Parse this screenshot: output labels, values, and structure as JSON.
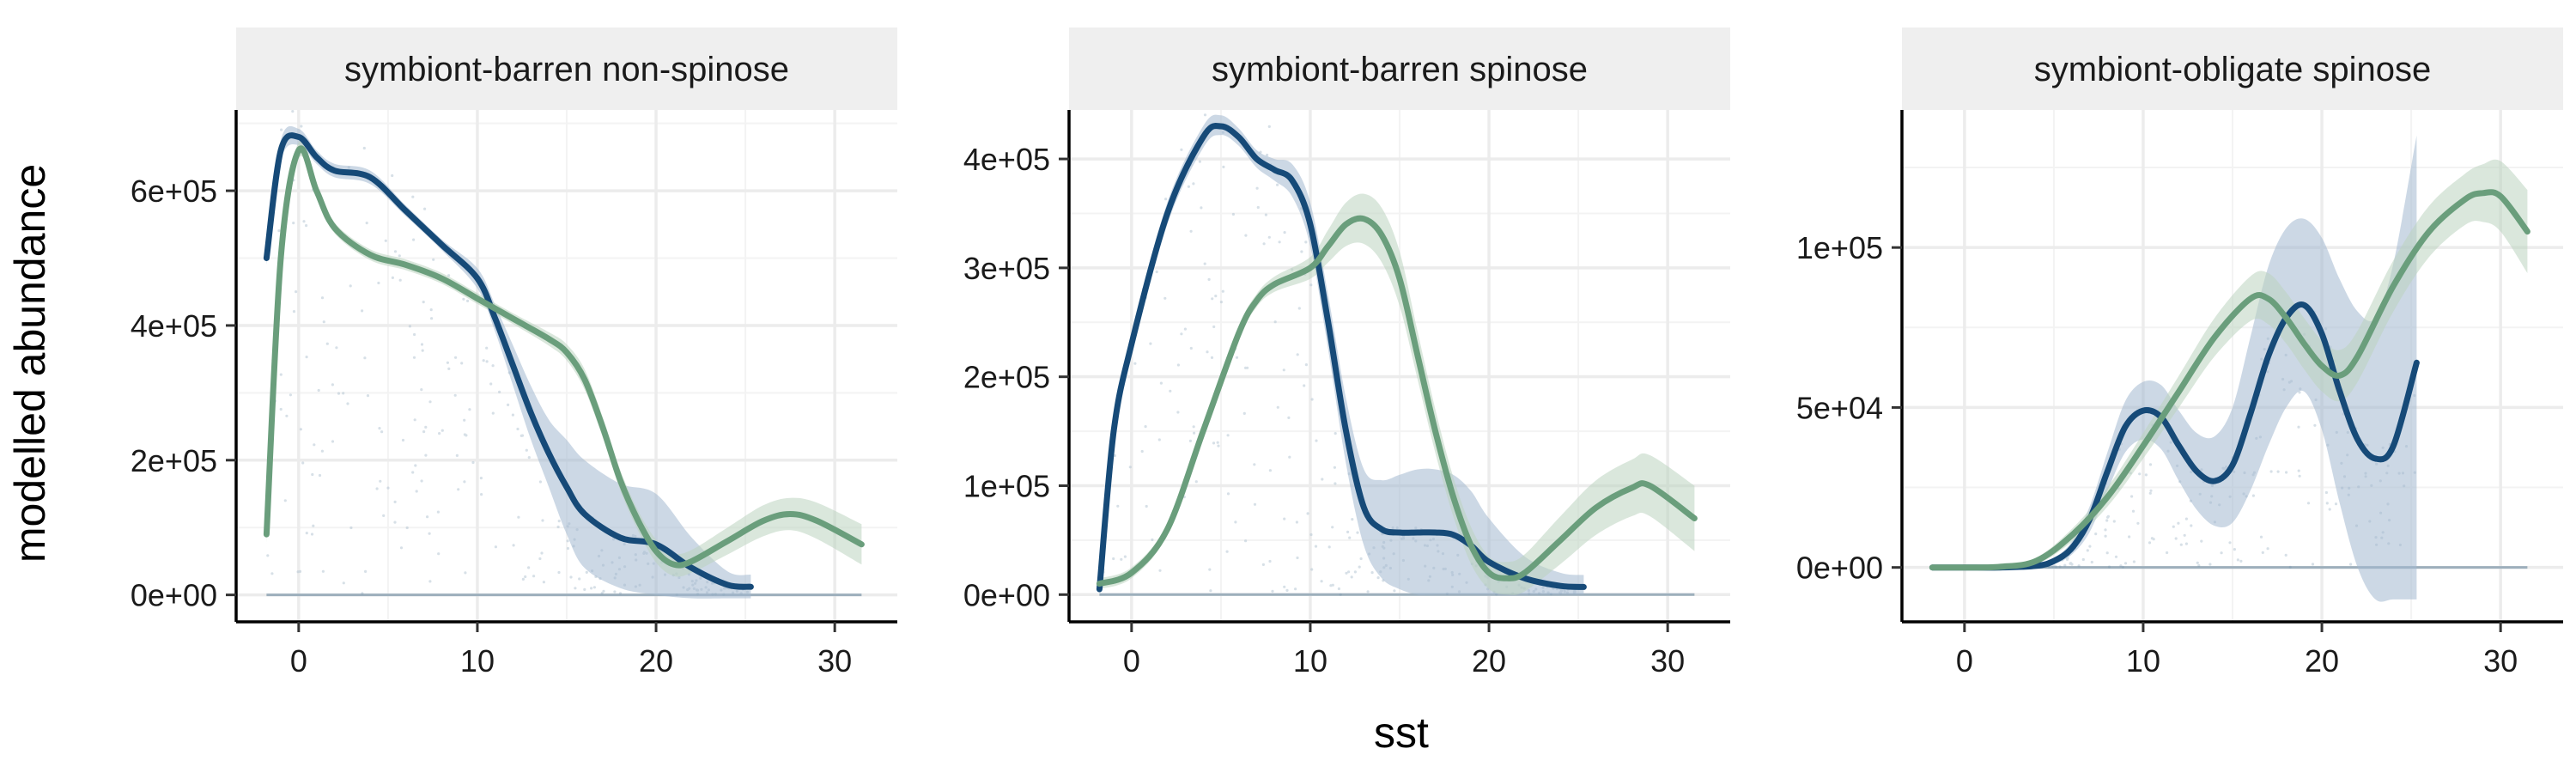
{
  "chart_data": {
    "type": "line",
    "xlabel": "sst",
    "ylabel": "modelled abundance",
    "grid": true,
    "colors": {
      "blue": "#164a78",
      "green": "#6a9e7c",
      "blue_band": "#a3b8d0",
      "green_band": "#bcd3bf",
      "points": "#b7c7d4",
      "strip_bg": "#efefef",
      "grid": "#ececec"
    },
    "panels": [
      {
        "title": "symbiont-barren non-spinose",
        "xlim": [
          -3.5,
          33.5
        ],
        "ylim": [
          -40000,
          720000
        ],
        "x_ticks": [
          0,
          10,
          20,
          30
        ],
        "x_tick_labels": [
          "0",
          "10",
          "20",
          "30"
        ],
        "y_ticks": [
          0,
          200000,
          400000,
          600000
        ],
        "y_tick_labels": [
          "0e+00",
          "2e+05",
          "4e+05",
          "6e+05"
        ],
        "series": [
          {
            "color_key": "blue",
            "x": [
              -1.8,
              -1,
              0,
              1,
              2,
              4,
              6,
              8,
              10,
              11,
              12,
              13,
              14,
              15,
              16,
              18,
              20,
              22,
              24,
              25.3
            ],
            "y": [
              500000,
              660000,
              680000,
              650000,
              630000,
              620000,
              570000,
              520000,
              470000,
              410000,
              340000,
              270000,
              210000,
              160000,
              120000,
              85000,
              75000,
              40000,
              15000,
              12000
            ],
            "lower": [
              490000,
              645000,
              668000,
              640000,
              620000,
              610000,
              562000,
              512000,
              455000,
              390000,
              310000,
              230000,
              160000,
              90000,
              40000,
              10000,
              0,
              -5000,
              -5000,
              -5000
            ],
            "upper": [
              510000,
              675000,
              692000,
              660000,
              640000,
              630000,
              578000,
              528000,
              485000,
              430000,
              370000,
              310000,
              260000,
              230000,
              200000,
              165000,
              150000,
              85000,
              35000,
              30000
            ]
          },
          {
            "color_key": "green",
            "x": [
              -1.8,
              -1,
              0,
              1,
              2,
              4,
              6,
              8,
              10,
              12,
              14,
              15,
              16,
              17,
              18,
              19,
              20,
              21,
              22,
              24,
              26,
              27.5,
              29,
              31.5
            ],
            "y": [
              90000,
              500000,
              660000,
              600000,
              545000,
              505000,
              490000,
              470000,
              440000,
              410000,
              380000,
              360000,
              320000,
              250000,
              170000,
              110000,
              65000,
              45000,
              50000,
              80000,
              110000,
              120000,
              110000,
              75000
            ],
            "lower": [
              75000,
              485000,
              648000,
              590000,
              537000,
              497000,
              482000,
              462000,
              432000,
              402000,
              370000,
              348000,
              305000,
              235000,
              155000,
              95000,
              48000,
              28000,
              33000,
              60000,
              87000,
              96000,
              83000,
              45000
            ],
            "upper": [
              105000,
              515000,
              672000,
              610000,
              553000,
              513000,
              498000,
              478000,
              448000,
              418000,
              390000,
              372000,
              335000,
              265000,
              185000,
              125000,
              82000,
              62000,
              67000,
              100000,
              133000,
              144000,
              137000,
              105000
            ]
          }
        ]
      },
      {
        "title": "symbiont-barren spinose",
        "xlim": [
          -3.5,
          33.5
        ],
        "ylim": [
          -25000,
          445000
        ],
        "x_ticks": [
          0,
          10,
          20,
          30
        ],
        "x_tick_labels": [
          "0",
          "10",
          "20",
          "30"
        ],
        "y_ticks": [
          0,
          100000,
          200000,
          300000,
          400000
        ],
        "y_tick_labels": [
          "0e+00",
          "1e+05",
          "2e+05",
          "3e+05",
          "4e+05"
        ],
        "series": [
          {
            "color_key": "blue",
            "x": [
              -1.8,
              -1,
              0,
              2,
              4,
              5,
              6,
              7,
              8,
              9,
              10,
              11,
              12,
              13,
              14,
              15,
              16,
              17,
              18,
              19,
              20,
              22,
              24,
              25.3
            ],
            "y": [
              5000,
              150000,
              230000,
              350000,
              420000,
              430000,
              420000,
              400000,
              390000,
              380000,
              340000,
              250000,
              150000,
              80000,
              60000,
              57000,
              57000,
              57000,
              55000,
              45000,
              30000,
              15000,
              8000,
              7000
            ],
            "lower": [
              0,
              140000,
              220000,
              340000,
              410000,
              422000,
              412000,
              392000,
              380000,
              365000,
              320000,
              225000,
              120000,
              45000,
              15000,
              5000,
              0,
              0,
              0,
              0,
              0,
              0,
              0,
              0
            ],
            "upper": [
              10000,
              160000,
              240000,
              360000,
              430000,
              440000,
              428000,
              408000,
              400000,
              395000,
              360000,
              275000,
              180000,
              115000,
              105000,
              110000,
              115000,
              115000,
              110000,
              95000,
              70000,
              35000,
              20000,
              18000
            ],
            "band_mode": "tail"
          },
          {
            "color_key": "green",
            "x": [
              -1.8,
              0,
              2,
              4,
              6,
              7,
              8,
              10,
              11,
              12,
              13,
              14,
              15,
              16,
              17,
              18,
              19,
              20,
              21,
              22,
              24,
              26,
              28,
              29,
              31.5
            ],
            "y": [
              10000,
              20000,
              60000,
              150000,
              240000,
              270000,
              285000,
              300000,
              320000,
              340000,
              345000,
              330000,
              290000,
              220000,
              150000,
              90000,
              45000,
              20000,
              15000,
              20000,
              50000,
              80000,
              98000,
              100000,
              70000
            ],
            "lower": [
              5000,
              15000,
              55000,
              145000,
              234000,
              264000,
              278000,
              290000,
              305000,
              320000,
              322000,
              305000,
              265000,
              198000,
              130000,
              72000,
              28000,
              5000,
              0,
              3000,
              28000,
              55000,
              72000,
              72000,
              40000
            ],
            "upper": [
              15000,
              25000,
              65000,
              155000,
              246000,
              276000,
              292000,
              310000,
              335000,
              360000,
              368000,
              355000,
              315000,
              242000,
              170000,
              108000,
              62000,
              35000,
              30000,
              37000,
              72000,
              105000,
              124000,
              128000,
              100000
            ]
          }
        ]
      },
      {
        "title": "symbiont-obligate spinose",
        "xlim": [
          -3.5,
          33.5
        ],
        "ylim": [
          -17000,
          143000
        ],
        "x_ticks": [
          0,
          10,
          20,
          30
        ],
        "x_tick_labels": [
          "0",
          "10",
          "20",
          "30"
        ],
        "y_ticks": [
          0,
          50000,
          100000
        ],
        "y_tick_labels": [
          "0e+00",
          "5e+04",
          "1e+05"
        ],
        "series": [
          {
            "color_key": "blue",
            "x": [
              -1.8,
              0,
              2,
              4,
              5,
              6,
              7,
              8,
              9,
              10,
              11,
              12,
              13,
              14,
              15,
              16,
              17,
              18,
              19,
              20,
              21,
              22,
              23,
              24,
              25.3
            ],
            "y": [
              0,
              0,
              0,
              500,
              2000,
              6000,
              15000,
              30000,
              44000,
              49000,
              47000,
              38000,
              30000,
              27000,
              32000,
              48000,
              66000,
              78000,
              82000,
              73000,
              55000,
              40000,
              34000,
              38000,
              64000
            ],
            "lower": [
              0,
              0,
              0,
              0,
              1000,
              4000,
              11000,
              24000,
              36000,
              40000,
              37000,
              27000,
              18000,
              13000,
              14000,
              24000,
              38000,
              50000,
              55000,
              43000,
              20000,
              0,
              -10000,
              -10000,
              -10000
            ],
            "upper": [
              0,
              0,
              0,
              1000,
              3000,
              8000,
              19000,
              36000,
              52000,
              58000,
              57000,
              49000,
              42000,
              41000,
              50000,
              72000,
              94000,
              106000,
              109000,
              103000,
              90000,
              80000,
              78000,
              95000,
              135000
            ]
          },
          {
            "color_key": "green",
            "x": [
              -1.8,
              0,
              2,
              4,
              6,
              8,
              10,
              12,
              14,
              16,
              17,
              18,
              19,
              20,
              21,
              22,
              24,
              26,
              28,
              29,
              30,
              31.5
            ],
            "y": [
              0,
              0,
              200,
              2000,
              10000,
              22000,
              38000,
              55000,
              72000,
              84000,
              84000,
              78000,
              70000,
              63000,
              60000,
              66000,
              88000,
              105000,
              115000,
              117000,
              116000,
              105000
            ],
            "lower": [
              0,
              0,
              0,
              1000,
              8000,
              19000,
              34000,
              50000,
              66000,
              77000,
              76000,
              70000,
              62000,
              55000,
              52000,
              58000,
              80000,
              97000,
              107000,
              108000,
              105000,
              92000
            ],
            "upper": [
              0,
              0,
              400,
              3000,
              12000,
              25000,
              42000,
              60000,
              78000,
              91000,
              92000,
              86000,
              78000,
              71000,
              68000,
              74000,
              96000,
              113000,
              123000,
              126000,
              127000,
              118000
            ]
          }
        ]
      }
    ]
  }
}
